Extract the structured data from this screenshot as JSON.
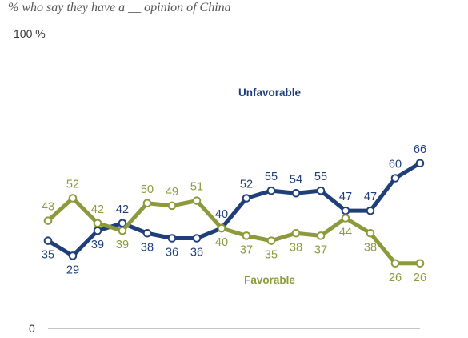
{
  "subtitle": "% who say they have a __ opinion of China",
  "chart_data": {
    "type": "line",
    "ylim": [
      0,
      100
    ],
    "y_tick_labels": [
      "100 %",
      "0"
    ],
    "grid": false,
    "series": [
      {
        "name": "Unfavorable",
        "color": "#1f3f7a",
        "values": [
          35,
          29,
          39,
          42,
          38,
          36,
          36,
          40,
          52,
          55,
          54,
          55,
          47,
          47,
          60,
          66
        ]
      },
      {
        "name": "Favorable",
        "color": "#8c9a3c",
        "values": [
          43,
          52,
          42,
          39,
          50,
          49,
          51,
          40,
          37,
          35,
          38,
          37,
          44,
          38,
          26,
          26
        ]
      }
    ]
  }
}
